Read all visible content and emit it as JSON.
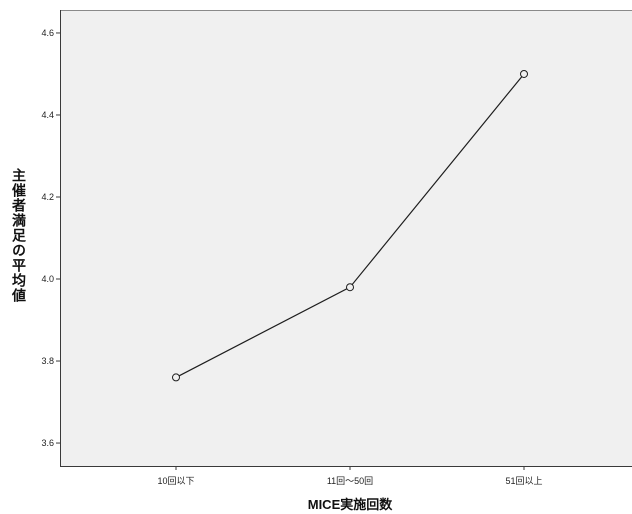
{
  "chart_data": {
    "type": "line",
    "categories": [
      "10回以下",
      "11回～50回",
      "51回以上"
    ],
    "values": [
      3.76,
      3.98,
      4.5
    ],
    "xlabel": "MICE実施回数",
    "ylabel": "主催者満足の平均値",
    "ylim": [
      3.544,
      4.656
    ],
    "yticks": [
      3.6,
      3.8,
      4.0,
      4.2,
      4.4,
      4.6
    ],
    "ytick_labels": [
      "3.6",
      "3.8",
      "4.0",
      "4.2",
      "4.4",
      "4.6"
    ],
    "grid": false,
    "legend": false
  },
  "colors": {
    "plot_background": "#f0f0f0",
    "line": "#1e1e1e",
    "axis": "#3a3a3a",
    "frame": "#8a8a8a"
  }
}
